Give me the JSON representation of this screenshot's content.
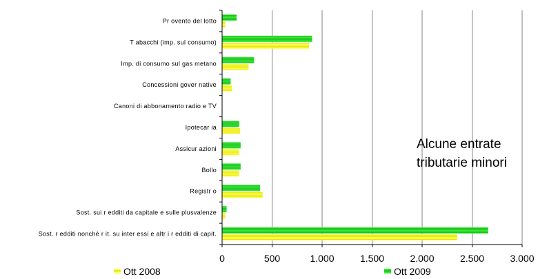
{
  "chart_data": {
    "type": "bar",
    "orientation": "horizontal",
    "categories": [
      "Pr ovento del lotto",
      "T abacchi (imp. sul consumo)",
      "Imp. di consumo sul gas metano",
      "Concessioni gover native",
      "Canoni di abbonamento radio e TV",
      "Ipotecar ia",
      "Assicur azioni",
      "Bollo",
      "Registr o",
      "Sost. sui r edditi da capitale e sulle plusvalenze",
      "Sost. r edditi nonchè r it. su inter essi e altr i r edditi di capit."
    ],
    "series": [
      {
        "name": "Ott 2008",
        "color": "#ffff66",
        "stroke": "#e6e600",
        "values": [
          30,
          870,
          265,
          100,
          0,
          180,
          170,
          170,
          405,
          30,
          2350
        ]
      },
      {
        "name": "Ott 2009",
        "color": "#33ee33",
        "stroke": "#22bb22",
        "values": [
          145,
          900,
          320,
          85,
          0,
          170,
          185,
          185,
          380,
          45,
          2660
        ]
      }
    ],
    "xlim": [
      0,
      3000
    ],
    "xticks": [
      0,
      500,
      1000,
      1500,
      2000,
      2500,
      3000
    ],
    "xtick_labels": [
      "0",
      "500",
      "1.000",
      "1.500",
      "2.000",
      "2.500",
      "3.000"
    ],
    "grid": "vertical",
    "legend": "bottom",
    "annotation": [
      "Alcune entrate",
      "tributarie minori"
    ]
  }
}
